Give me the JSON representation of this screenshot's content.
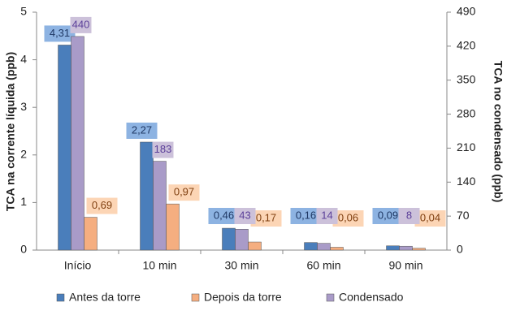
{
  "chart_data": {
    "type": "bar",
    "categories": [
      "Início",
      "10 min",
      "30 min",
      "60 min",
      "90 min"
    ],
    "ylabel": "TCA  na corrente líquida (ppb)",
    "y2label": "TCA no condensado (ppb)",
    "ylim": [
      0,
      5
    ],
    "yticks": [
      0,
      1,
      2,
      3,
      4,
      5
    ],
    "y2lim": [
      0,
      490
    ],
    "y2ticks": [
      0,
      70,
      140,
      210,
      280,
      350,
      420,
      490
    ],
    "legend": "bottom",
    "series": [
      {
        "name": "Antes da torre",
        "color": "#4a7ebb",
        "values": [
          4.31,
          2.27,
          0.46,
          0.16,
          0.09
        ],
        "value_labels": [
          "4,31",
          "2,27",
          "0,46",
          "0,16",
          "0,09"
        ]
      },
      {
        "name": "Depois da torre",
        "color": "#f5ae80",
        "values": [
          0.69,
          0.97,
          0.17,
          0.06,
          0.04
        ],
        "value_labels": [
          "0,69",
          "0,97",
          "0,17",
          "0,06",
          "0,04"
        ]
      },
      {
        "name": "Condensado",
        "color": "#a99bc8",
        "axis": "y2",
        "values": [
          440,
          183,
          43,
          14,
          8
        ]
      }
    ]
  }
}
